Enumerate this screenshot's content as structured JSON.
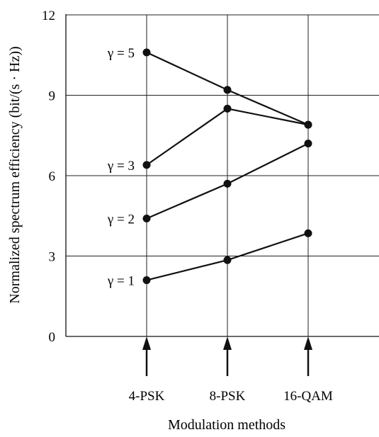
{
  "chart_data": {
    "type": "line",
    "title": "",
    "xlabel": "Modulation methods",
    "ylabel": "Normalized spectrum efficiency (bit/(s · Hz))",
    "categories": [
      "4-PSK",
      "8-PSK",
      "16-QAM"
    ],
    "ylim": [
      0,
      12
    ],
    "yticks": [
      "0",
      "3",
      "6",
      "9",
      "12"
    ],
    "grid": true,
    "series": [
      {
        "name": "γ = 1",
        "values": [
          2.1,
          2.85,
          3.85
        ]
      },
      {
        "name": "γ = 2",
        "values": [
          4.4,
          5.7,
          7.2
        ]
      },
      {
        "name": "γ = 3",
        "values": [
          6.4,
          8.5,
          7.9
        ]
      },
      {
        "name": "γ = 5",
        "values": [
          10.6,
          9.2,
          7.9
        ]
      }
    ],
    "colors": {
      "line": "#111111",
      "grid": "#222222"
    }
  }
}
